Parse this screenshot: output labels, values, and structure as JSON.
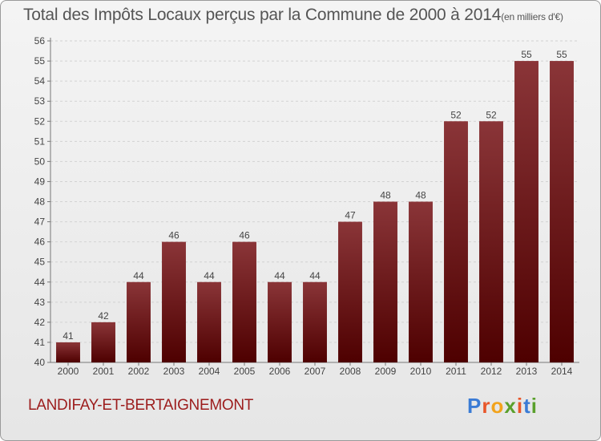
{
  "header": {
    "title": "Total des Impôts Locaux perçus par la Commune de 2000 à 2014",
    "unit": "(en milliers d'€)"
  },
  "footer": {
    "commune": "LANDIFAY-ET-BERTAIGNEMONT",
    "brand_letters": [
      "P",
      "r",
      "o",
      "x",
      "i",
      "t",
      "i"
    ],
    "brand_colors": [
      "#3a7bd5",
      "#e8562a",
      "#f2a31c",
      "#5aa02c",
      "#e8562a",
      "#3a7bd5",
      "#5aa02c"
    ]
  },
  "chart_data": {
    "type": "bar",
    "title": "Total des Impôts Locaux perçus par la Commune de 2000 à 2014",
    "xlabel": "",
    "ylabel": "",
    "ylim": [
      40,
      56
    ],
    "yticks": [
      40,
      41,
      42,
      43,
      44,
      45,
      46,
      47,
      48,
      49,
      50,
      51,
      52,
      53,
      54,
      55,
      56
    ],
    "grid": true,
    "categories": [
      "2000",
      "2001",
      "2002",
      "2003",
      "2004",
      "2005",
      "2006",
      "2007",
      "2008",
      "2009",
      "2010",
      "2011",
      "2012",
      "2013",
      "2014"
    ],
    "values": [
      41,
      42,
      44,
      46,
      44,
      46,
      44,
      44,
      47,
      48,
      48,
      52,
      52,
      55,
      55
    ],
    "bar_color_top": "#8a3538",
    "bar_color_bottom": "#4e0000"
  }
}
